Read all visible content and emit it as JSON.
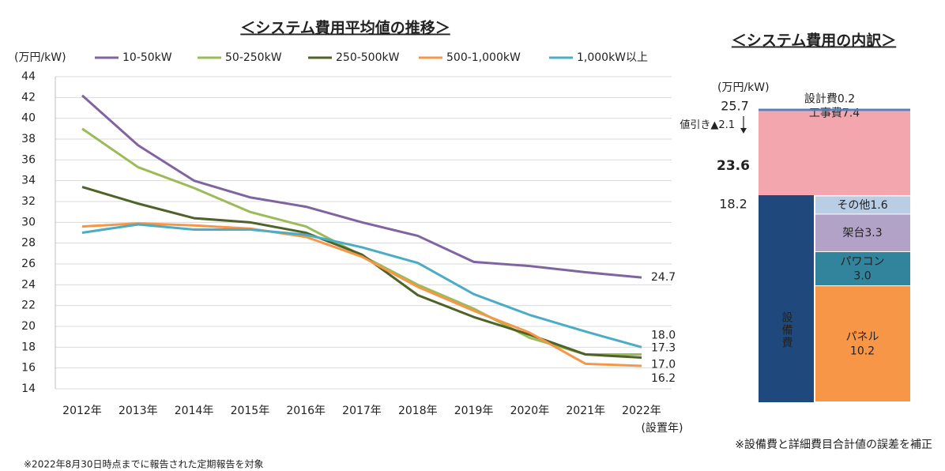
{
  "chart_data": [
    {
      "type": "line",
      "title": "＜システム費用平均値の推移＞",
      "y_label": "(万円/kW)",
      "x_label": "(設置年)",
      "categories": [
        "2012年",
        "2013年",
        "2014年",
        "2015年",
        "2016年",
        "2017年",
        "2018年",
        "2019年",
        "2020年",
        "2021年",
        "2022年"
      ],
      "ylim": [
        14,
        44
      ],
      "yticks": [
        14,
        16,
        18,
        20,
        22,
        24,
        26,
        28,
        30,
        32,
        34,
        36,
        38,
        40,
        42,
        44
      ],
      "grid": true,
      "legend": "top",
      "series": [
        {
          "name": "10-50kW",
          "color": "#8064a2",
          "values": [
            42.2,
            37.4,
            34.0,
            32.4,
            31.5,
            30.0,
            28.7,
            26.2,
            25.8,
            25.2,
            24.7
          ],
          "value_labels": [
            null,
            null,
            null,
            null,
            null,
            null,
            null,
            null,
            null,
            null,
            "24.7"
          ]
        },
        {
          "name": "50-250kW",
          "color": "#9bbb59",
          "values": [
            39.0,
            35.3,
            33.3,
            31.0,
            29.6,
            26.8,
            24.0,
            21.7,
            18.9,
            17.3,
            17.3
          ],
          "value_labels": [
            null,
            null,
            null,
            null,
            null,
            null,
            null,
            null,
            null,
            null,
            "17.3"
          ]
        },
        {
          "name": "250-500kW",
          "color": "#4f6228",
          "values": [
            33.4,
            31.8,
            30.4,
            30.0,
            29.0,
            26.9,
            23.0,
            20.9,
            19.2,
            17.3,
            17.0
          ],
          "value_labels": [
            null,
            null,
            null,
            null,
            null,
            null,
            null,
            null,
            null,
            null,
            "17.0"
          ]
        },
        {
          "name": "500-1,000kW",
          "color": "#f79646",
          "values": [
            29.6,
            29.9,
            29.7,
            29.4,
            28.6,
            26.7,
            23.8,
            21.5,
            19.4,
            16.4,
            16.2
          ],
          "value_labels": [
            null,
            null,
            null,
            null,
            null,
            null,
            null,
            null,
            null,
            null,
            "16.2"
          ]
        },
        {
          "name": "1,000kW以上",
          "color": "#4bacc6",
          "values": [
            29.0,
            29.8,
            29.3,
            29.3,
            28.8,
            27.6,
            26.1,
            23.1,
            21.1,
            19.5,
            18.0
          ],
          "value_labels": [
            null,
            null,
            null,
            null,
            null,
            null,
            null,
            null,
            null,
            null,
            "18.0"
          ]
        }
      ],
      "footnote": "※2022年8月30日時点までに報告された定期報告を対象"
    },
    {
      "type": "stacked_bar",
      "title": "＜システム費用の内訳＞",
      "y_label": "(万円/kW)",
      "ylim": [
        0,
        25.7
      ],
      "series": [
        {
          "name": "設備費",
          "value": 18.2,
          "color": "#1f497d",
          "breakdown": [
            {
              "name": "パネル",
              "value": 10.2,
              "color": "#f79646"
            },
            {
              "name": "パワコン",
              "value": 3.0,
              "value_label": "3.0",
              "color": "#31849b"
            },
            {
              "name": "架台",
              "value": 3.3,
              "color": "#b3a2c7"
            },
            {
              "name": "その他",
              "value": 1.6,
              "color": "#b9cde5"
            }
          ]
        },
        {
          "name": "工事費",
          "value": 7.4,
          "color": "#f4a6ae"
        },
        {
          "name": "設計費",
          "value": 0.2,
          "color": "#4f81bd"
        }
      ],
      "gross_total": 25.7,
      "discount": {
        "name": "値引き▲",
        "value": 2.1
      },
      "net_total": 23.6,
      "net_color": "#ff0000",
      "note": "※設備費と詳細費目合計値の誤差を補正"
    }
  ]
}
